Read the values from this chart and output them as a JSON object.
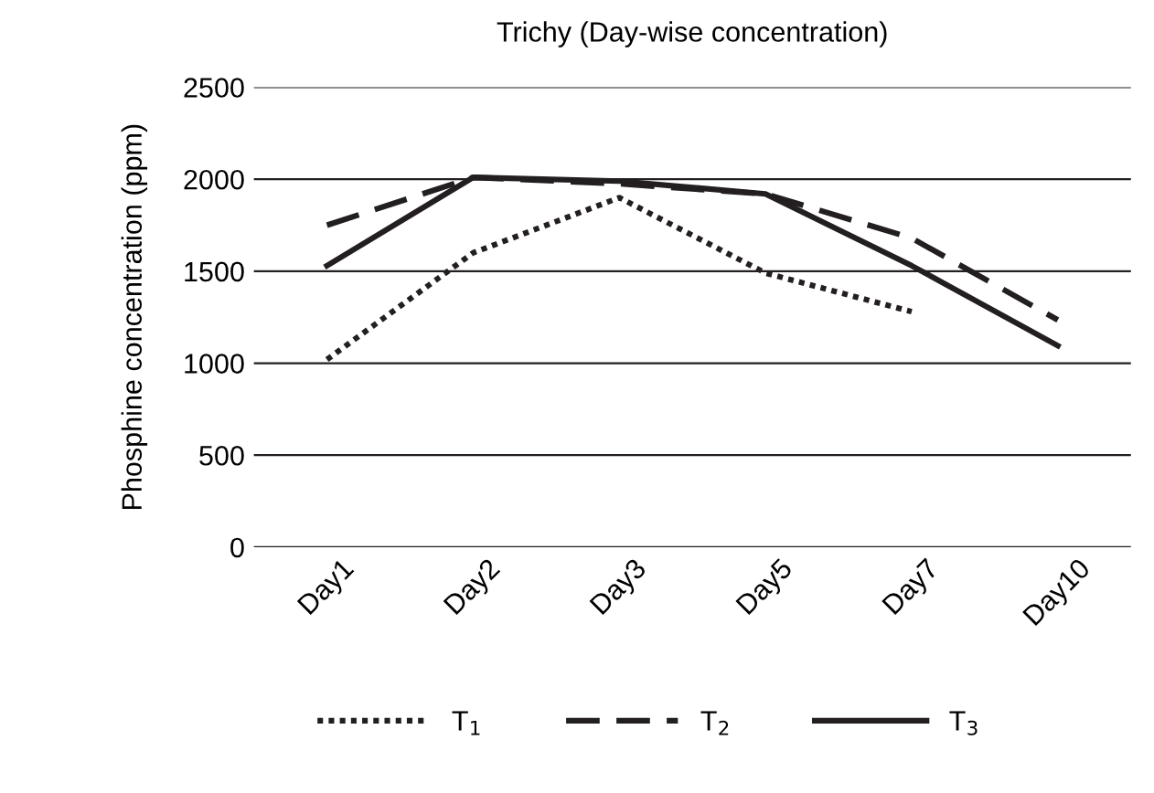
{
  "chart_data": {
    "type": "line",
    "title": "Trichy (Day-wise concentration)",
    "ylabel": "Phosphine concentration (ppm)",
    "categories": [
      "Day1",
      "Day2",
      "Day3",
      "Day5",
      "Day7",
      "Day10"
    ],
    "series": [
      {
        "name": "T$_{1}$",
        "color": "#231f20",
        "line_style": "dotted",
        "values": [
          1020,
          1600,
          1900,
          1490,
          1280,
          null
        ]
      },
      {
        "name": "T$_{2}$",
        "color": "#231f20",
        "line_style": "dashed",
        "values": [
          1750,
          2010,
          1975,
          1920,
          1680,
          1235
        ]
      },
      {
        "name": "T$_{3}$",
        "color": "#231f20",
        "line_style": "solid",
        "values": [
          1530,
          2010,
          1990,
          1920,
          1530,
          1095
        ]
      }
    ],
    "ylim": [
      0,
      2500
    ],
    "yticks": [
      0,
      500,
      1000,
      1500,
      2000,
      2500
    ],
    "grid": "y",
    "legend": "bottom",
    "marker": "none"
  }
}
